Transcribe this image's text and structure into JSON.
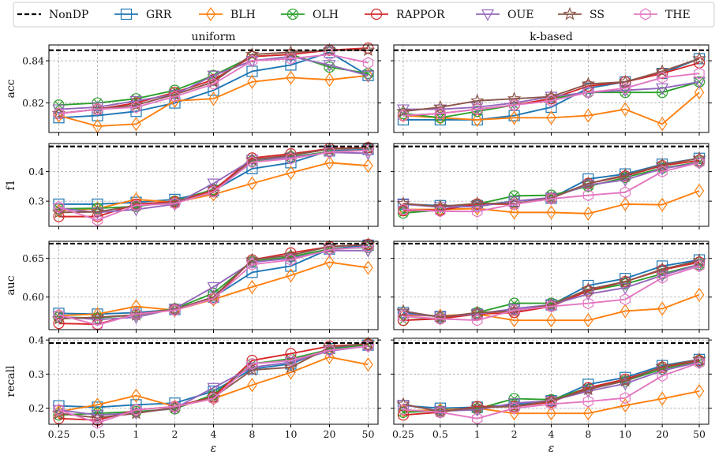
{
  "chart_data": {
    "type": "line",
    "x_tick_labels": [
      "0.25",
      "0.5",
      "1",
      "2",
      "4",
      "8",
      "10",
      "20",
      "50"
    ],
    "xlabel": "ε",
    "column_titles": [
      "uniform",
      "k-based"
    ],
    "legend": {
      "placement": "top",
      "entries": [
        {
          "name": "NonDP",
          "color": "#000000",
          "marker": "dash"
        },
        {
          "name": "GRR",
          "color": "#1f77b4",
          "marker": "square"
        },
        {
          "name": "BLH",
          "color": "#ff7f0e",
          "marker": "diamond"
        },
        {
          "name": "OLH",
          "color": "#2ca02c",
          "marker": "x-circle"
        },
        {
          "name": "RAPPOR",
          "color": "#d62728",
          "marker": "circle"
        },
        {
          "name": "OUE",
          "color": "#9467bd",
          "marker": "triangle-down"
        },
        {
          "name": "SS",
          "color": "#8c564b",
          "marker": "star"
        },
        {
          "name": "THE",
          "color": "#e377c2",
          "marker": "hexagon"
        }
      ]
    },
    "panels": [
      {
        "metric": "acc",
        "column": "uniform",
        "ylim": [
          0.806,
          0.8475
        ],
        "yticks": [
          0.82,
          0.84
        ],
        "ytick_labels": [
          "0.82",
          "0.84"
        ],
        "nondp": 0.845,
        "series": [
          {
            "name": "GRR",
            "values": [
              0.813,
              0.814,
              0.816,
              0.82,
              0.826,
              0.835,
              0.838,
              0.844,
              0.833
            ]
          },
          {
            "name": "BLH",
            "values": [
              0.814,
              0.809,
              0.81,
              0.821,
              0.822,
              0.83,
              0.832,
              0.831,
              0.833
            ]
          },
          {
            "name": "OLH",
            "values": [
              0.819,
              0.82,
              0.822,
              0.826,
              0.833,
              0.842,
              0.843,
              0.837,
              0.834
            ]
          },
          {
            "name": "RAPPOR",
            "values": [
              0.815,
              0.817,
              0.82,
              0.825,
              0.831,
              0.842,
              0.843,
              0.845,
              0.846
            ]
          },
          {
            "name": "OUE",
            "values": [
              0.817,
              0.818,
              0.821,
              0.824,
              0.833,
              0.84,
              0.842,
              0.838,
              0.833
            ]
          },
          {
            "name": "SS",
            "values": [
              0.815,
              0.817,
              0.819,
              0.824,
              0.83,
              0.843,
              0.844,
              0.845,
              0.845
            ]
          },
          {
            "name": "THE",
            "values": [
              0.815,
              0.817,
              0.818,
              0.823,
              0.829,
              0.84,
              0.841,
              0.843,
              0.839
            ]
          }
        ]
      },
      {
        "metric": "acc",
        "column": "k-based",
        "ylim": [
          0.806,
          0.8475
        ],
        "yticks": [
          0.82,
          0.84
        ],
        "ytick_labels": [
          "0.82",
          "0.84"
        ],
        "nondp": 0.845,
        "series": [
          {
            "name": "GRR",
            "values": [
              0.812,
              0.812,
              0.812,
              0.814,
              0.818,
              0.827,
              0.83,
              0.834,
              0.841
            ]
          },
          {
            "name": "BLH",
            "values": [
              0.814,
              0.813,
              0.812,
              0.813,
              0.813,
              0.814,
              0.817,
              0.81,
              0.825
            ]
          },
          {
            "name": "OLH",
            "values": [
              0.815,
              0.813,
              0.816,
              0.819,
              0.822,
              0.825,
              0.825,
              0.825,
              0.83
            ]
          },
          {
            "name": "RAPPOR",
            "values": [
              0.814,
              0.815,
              0.817,
              0.819,
              0.822,
              0.828,
              0.83,
              0.834,
              0.839
            ]
          },
          {
            "name": "OUE",
            "values": [
              0.817,
              0.817,
              0.818,
              0.82,
              0.823,
              0.825,
              0.826,
              0.827,
              0.83
            ]
          },
          {
            "name": "SS",
            "values": [
              0.816,
              0.818,
              0.821,
              0.822,
              0.823,
              0.829,
              0.83,
              0.835,
              0.841
            ]
          },
          {
            "name": "THE",
            "values": [
              0.814,
              0.815,
              0.817,
              0.819,
              0.821,
              0.825,
              0.827,
              0.832,
              0.834
            ]
          }
        ]
      },
      {
        "metric": "f1",
        "column": "uniform",
        "ylim": [
          0.215,
          0.495
        ],
        "yticks": [
          0.3,
          0.4
        ],
        "ytick_labels": [
          "0.3",
          "0.4"
        ],
        "nondp": 0.485,
        "series": [
          {
            "name": "GRR",
            "values": [
              0.29,
              0.29,
              0.296,
              0.306,
              0.336,
              0.41,
              0.43,
              0.47,
              0.475
            ]
          },
          {
            "name": "BLH",
            "values": [
              0.268,
              0.275,
              0.306,
              0.296,
              0.323,
              0.36,
              0.396,
              0.43,
              0.42
            ]
          },
          {
            "name": "OLH",
            "values": [
              0.274,
              0.276,
              0.282,
              0.3,
              0.34,
              0.435,
              0.45,
              0.467,
              0.473
            ]
          },
          {
            "name": "RAPPOR",
            "values": [
              0.248,
              0.248,
              0.29,
              0.298,
              0.336,
              0.446,
              0.46,
              0.478,
              0.481
            ]
          },
          {
            "name": "OUE",
            "values": [
              0.276,
              0.262,
              0.272,
              0.29,
              0.36,
              0.44,
              0.448,
              0.465,
              0.462
            ]
          },
          {
            "name": "SS",
            "values": [
              0.262,
              0.264,
              0.285,
              0.296,
              0.33,
              0.44,
              0.455,
              0.476,
              0.48
            ]
          },
          {
            "name": "THE",
            "values": [
              0.28,
              0.236,
              0.286,
              0.292,
              0.332,
              0.432,
              0.444,
              0.466,
              0.472
            ]
          }
        ]
      },
      {
        "metric": "f1",
        "column": "k-based",
        "ylim": [
          0.215,
          0.495
        ],
        "yticks": [
          0.3,
          0.4
        ],
        "ytick_labels": [
          "0.3",
          "0.4"
        ],
        "nondp": 0.485,
        "series": [
          {
            "name": "GRR",
            "values": [
              0.29,
              0.285,
              0.285,
              0.3,
              0.31,
              0.375,
              0.392,
              0.425,
              0.445
            ]
          },
          {
            "name": "BLH",
            "values": [
              0.272,
              0.272,
              0.275,
              0.262,
              0.262,
              0.258,
              0.29,
              0.288,
              0.335
            ]
          },
          {
            "name": "OLH",
            "values": [
              0.26,
              0.27,
              0.29,
              0.318,
              0.32,
              0.35,
              0.38,
              0.412,
              0.432
            ]
          },
          {
            "name": "RAPPOR",
            "values": [
              0.268,
              0.27,
              0.29,
              0.29,
              0.31,
              0.36,
              0.385,
              0.42,
              0.438
            ]
          },
          {
            "name": "OUE",
            "values": [
              0.29,
              0.28,
              0.282,
              0.3,
              0.312,
              0.355,
              0.372,
              0.41,
              0.43
            ]
          },
          {
            "name": "SS",
            "values": [
              0.292,
              0.282,
              0.292,
              0.292,
              0.31,
              0.36,
              0.388,
              0.423,
              0.445
            ]
          },
          {
            "name": "THE",
            "values": [
              0.272,
              0.266,
              0.265,
              0.29,
              0.308,
              0.32,
              0.33,
              0.4,
              0.43
            ]
          }
        ]
      },
      {
        "metric": "auc",
        "column": "uniform",
        "ylim": [
          0.558,
          0.672
        ],
        "yticks": [
          0.6,
          0.65
        ],
        "ytick_labels": [
          "0.60",
          "0.65"
        ],
        "nondp": 0.669,
        "series": [
          {
            "name": "GRR",
            "values": [
              0.579,
              0.578,
              0.58,
              0.584,
              0.6,
              0.632,
              0.64,
              0.662,
              0.667
            ]
          },
          {
            "name": "BLH",
            "values": [
              0.576,
              0.578,
              0.588,
              0.583,
              0.597,
              0.613,
              0.628,
              0.645,
              0.638
            ]
          },
          {
            "name": "OLH",
            "values": [
              0.574,
              0.573,
              0.577,
              0.585,
              0.605,
              0.646,
              0.652,
              0.662,
              0.664
            ]
          },
          {
            "name": "RAPPOR",
            "values": [
              0.566,
              0.565,
              0.578,
              0.584,
              0.598,
              0.648,
              0.657,
              0.665,
              0.668
            ]
          },
          {
            "name": "OUE",
            "values": [
              0.575,
              0.571,
              0.574,
              0.585,
              0.613,
              0.645,
              0.65,
              0.66,
              0.66
            ]
          },
          {
            "name": "SS",
            "values": [
              0.572,
              0.574,
              0.577,
              0.584,
              0.6,
              0.648,
              0.654,
              0.665,
              0.668
            ]
          },
          {
            "name": "THE",
            "values": [
              0.577,
              0.564,
              0.578,
              0.583,
              0.598,
              0.642,
              0.648,
              0.661,
              0.665
            ]
          }
        ]
      },
      {
        "metric": "auc",
        "column": "k-based",
        "ylim": [
          0.558,
          0.672
        ],
        "yticks": [
          0.6,
          0.65
        ],
        "ytick_labels": [
          "0.60",
          "0.65"
        ],
        "nondp": 0.669,
        "series": [
          {
            "name": "GRR",
            "values": [
              0.58,
              0.575,
              0.578,
              0.585,
              0.59,
              0.615,
              0.624,
              0.64,
              0.648
            ]
          },
          {
            "name": "BLH",
            "values": [
              0.576,
              0.576,
              0.578,
              0.57,
              0.57,
              0.57,
              0.582,
              0.585,
              0.603
            ]
          },
          {
            "name": "OLH",
            "values": [
              0.57,
              0.573,
              0.58,
              0.592,
              0.592,
              0.608,
              0.617,
              0.63,
              0.642
            ]
          },
          {
            "name": "RAPPOR",
            "values": [
              0.57,
              0.572,
              0.578,
              0.58,
              0.588,
              0.608,
              0.62,
              0.635,
              0.645
            ]
          },
          {
            "name": "OUE",
            "values": [
              0.578,
              0.575,
              0.578,
              0.585,
              0.59,
              0.604,
              0.612,
              0.628,
              0.642
            ]
          },
          {
            "name": "SS",
            "values": [
              0.582,
              0.574,
              0.58,
              0.582,
              0.59,
              0.61,
              0.62,
              0.636,
              0.647
            ]
          },
          {
            "name": "THE",
            "values": [
              0.575,
              0.572,
              0.57,
              0.583,
              0.588,
              0.592,
              0.597,
              0.625,
              0.64
            ]
          }
        ]
      },
      {
        "metric": "recall",
        "column": "uniform",
        "ylim": [
          0.153,
          0.405
        ],
        "yticks": [
          0.2,
          0.3,
          0.4
        ],
        "ytick_labels": [
          "0.2",
          "0.3",
          "0.4"
        ],
        "nondp": 0.391,
        "series": [
          {
            "name": "GRR",
            "values": [
              0.207,
              0.203,
              0.21,
              0.215,
              0.25,
              0.315,
              0.33,
              0.375,
              0.385
            ]
          },
          {
            "name": "BLH",
            "values": [
              0.19,
              0.21,
              0.237,
              0.205,
              0.228,
              0.268,
              0.305,
              0.35,
              0.328
            ]
          },
          {
            "name": "OLH",
            "values": [
              0.18,
              0.185,
              0.19,
              0.198,
              0.24,
              0.33,
              0.345,
              0.372,
              0.386
            ]
          },
          {
            "name": "RAPPOR",
            "values": [
              0.17,
              0.165,
              0.195,
              0.205,
              0.233,
              0.34,
              0.36,
              0.382,
              0.388
            ]
          },
          {
            "name": "OUE",
            "values": [
              0.195,
              0.18,
              0.186,
              0.2,
              0.26,
              0.32,
              0.335,
              0.368,
              0.382
            ]
          },
          {
            "name": "SS",
            "values": [
              0.185,
              0.172,
              0.185,
              0.202,
              0.232,
              0.312,
              0.32,
              0.378,
              0.39
            ]
          },
          {
            "name": "THE",
            "values": [
              0.195,
              0.157,
              0.195,
              0.205,
              0.228,
              0.33,
              0.34,
              0.37,
              0.382
            ]
          }
        ]
      },
      {
        "metric": "recall",
        "column": "k-based",
        "ylim": [
          0.153,
          0.405
        ],
        "yticks": [
          0.2,
          0.3,
          0.4
        ],
        "ytick_labels": [
          "0.2",
          "0.3",
          "0.4"
        ],
        "nondp": 0.391,
        "series": [
          {
            "name": "GRR",
            "values": [
              0.208,
              0.2,
              0.203,
              0.21,
              0.222,
              0.27,
              0.29,
              0.325,
              0.343
            ]
          },
          {
            "name": "BLH",
            "values": [
              0.192,
              0.195,
              0.2,
              0.185,
              0.185,
              0.185,
              0.208,
              0.228,
              0.25
            ]
          },
          {
            "name": "OLH",
            "values": [
              0.188,
              0.192,
              0.198,
              0.228,
              0.225,
              0.26,
              0.28,
              0.315,
              0.338
            ]
          },
          {
            "name": "RAPPOR",
            "values": [
              0.18,
              0.188,
              0.205,
              0.205,
              0.218,
              0.26,
              0.285,
              0.32,
              0.34
            ]
          },
          {
            "name": "OUE",
            "values": [
              0.21,
              0.192,
              0.195,
              0.215,
              0.222,
              0.25,
              0.272,
              0.31,
              0.335
            ]
          },
          {
            "name": "SS",
            "values": [
              0.212,
              0.19,
              0.202,
              0.205,
              0.222,
              0.255,
              0.28,
              0.322,
              0.343
            ]
          },
          {
            "name": "THE",
            "values": [
              0.196,
              0.188,
              0.17,
              0.2,
              0.212,
              0.22,
              0.23,
              0.295,
              0.333
            ]
          }
        ]
      }
    ]
  }
}
